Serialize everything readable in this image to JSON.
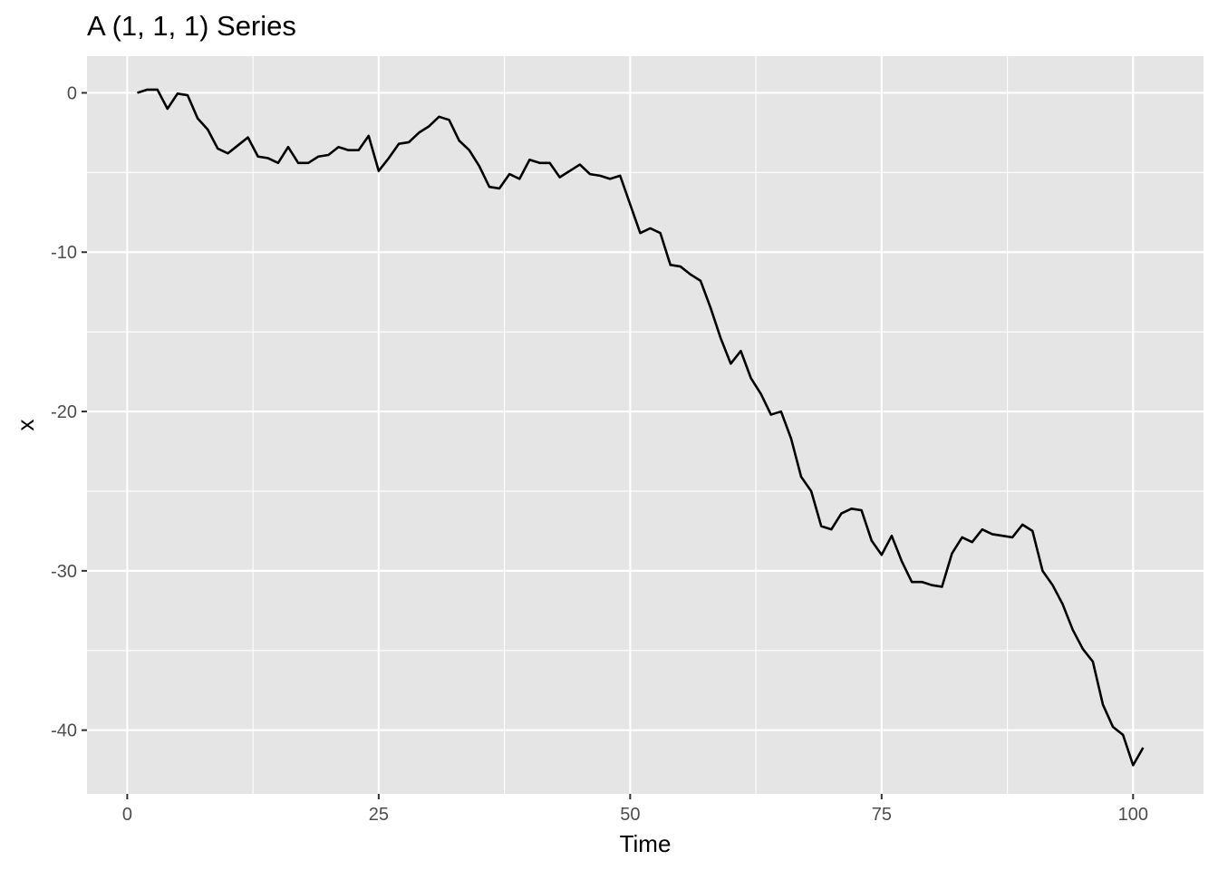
{
  "chart_data": {
    "type": "line",
    "title": "A (1, 1, 1) Series",
    "xlabel": "Time",
    "ylabel": "x",
    "xlim": [
      -4,
      107
    ],
    "ylim": [
      -44,
      2.3
    ],
    "x_ticks": [
      0,
      25,
      50,
      75,
      100
    ],
    "x_tick_labels": [
      "0",
      "25",
      "50",
      "75",
      "100"
    ],
    "y_ticks": [
      0,
      -10,
      -20,
      -30,
      -40
    ],
    "y_tick_labels": [
      "0",
      "-10",
      "-20",
      "-30",
      "-40"
    ],
    "grid": true,
    "panel_background": "#e5e5e5",
    "grid_color": "#ffffff",
    "line_color": "#000000",
    "series": [
      {
        "x": [
          1,
          2,
          3,
          4,
          5,
          6,
          7,
          8,
          9,
          10,
          11,
          12,
          13,
          14,
          15,
          16,
          17,
          18,
          19,
          20,
          21,
          22,
          23,
          24,
          25,
          26,
          27,
          28,
          29,
          30,
          31,
          32,
          33,
          34,
          35,
          36,
          37,
          38,
          39,
          40,
          41,
          42,
          43,
          44,
          45,
          46,
          47,
          48,
          49,
          50,
          51,
          52,
          53,
          54,
          55,
          56,
          57,
          58,
          59,
          60,
          61,
          62,
          63,
          64,
          65,
          66,
          67,
          68,
          69,
          70,
          71,
          72,
          73,
          74,
          75,
          76,
          77,
          78,
          79,
          80,
          81,
          82,
          83,
          84,
          85,
          86,
          87,
          88,
          89,
          90,
          91,
          92,
          93,
          94,
          95,
          96,
          97,
          98,
          99,
          100,
          101
        ],
        "y": [
          0.0,
          0.2,
          0.2,
          -1.0,
          -0.05,
          -0.15,
          -1.6,
          -2.3,
          -3.5,
          -3.8,
          -3.3,
          -2.8,
          -4.0,
          -4.1,
          -4.4,
          -3.4,
          -4.4,
          -4.4,
          -4.0,
          -3.9,
          -3.4,
          -3.6,
          -3.6,
          -2.7,
          -4.9,
          -4.1,
          -3.2,
          -3.1,
          -2.5,
          -2.1,
          -1.5,
          -1.7,
          -3.0,
          -3.6,
          -4.6,
          -5.9,
          -6.0,
          -5.1,
          -5.4,
          -4.2,
          -4.4,
          -4.4,
          -5.3,
          -4.9,
          -4.5,
          -5.1,
          -5.2,
          -5.4,
          -5.2,
          -7.0,
          -8.8,
          -8.5,
          -8.8,
          -10.8,
          -10.9,
          -11.4,
          -11.8,
          -13.5,
          -15.4,
          -17.0,
          -16.2,
          -17.9,
          -18.9,
          -20.2,
          -20.0,
          -21.7,
          -24.1,
          -25.0,
          -27.2,
          -27.4,
          -26.4,
          -26.1,
          -26.2,
          -28.1,
          -29.0,
          -27.8,
          -29.4,
          -30.7,
          -30.7,
          -30.9,
          -31.0,
          -28.9,
          -27.9,
          -28.2,
          -27.4,
          -27.7,
          -27.8,
          -27.9,
          -27.1,
          -27.5,
          -30.0,
          -30.9,
          -32.1,
          -33.7,
          -34.9,
          -35.7,
          -38.4,
          -39.8,
          -40.3,
          -42.2,
          -41.1
        ]
      }
    ]
  }
}
